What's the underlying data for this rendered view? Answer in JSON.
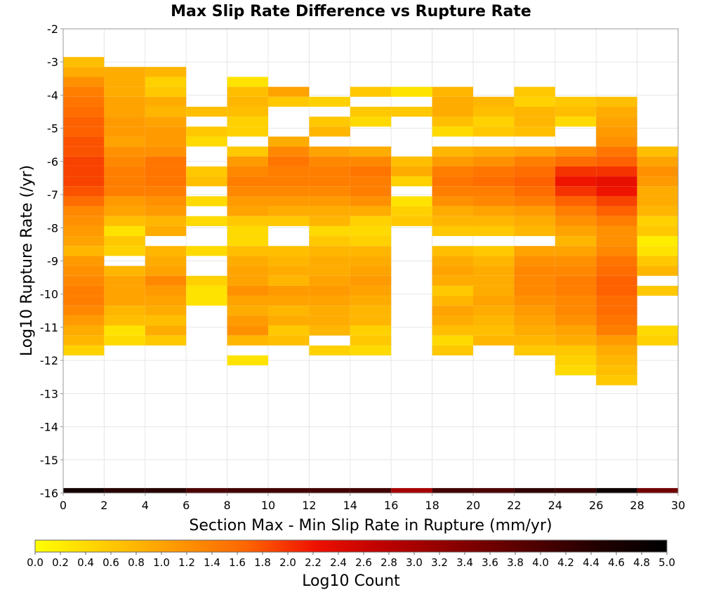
{
  "chart_data": {
    "type": "heatmap",
    "title": "Max Slip Rate Difference vs Rupture Rate",
    "xlabel": "Section Max - Min Slip Rate in Rupture (mm/yr)",
    "ylabel": "Log10 Rupture Rate (/yr)",
    "xlim": [
      0,
      30
    ],
    "ylim": [
      -16,
      -2
    ],
    "x_ticks": [
      "0",
      "2",
      "4",
      "6",
      "8",
      "10",
      "12",
      "14",
      "16",
      "18",
      "20",
      "22",
      "24",
      "26",
      "28",
      "30"
    ],
    "y_ticks": [
      "-2",
      "-3",
      "-4",
      "-5",
      "-6",
      "-7",
      "-8",
      "-9",
      "-10",
      "-11",
      "-12",
      "-13",
      "-14",
      "-15",
      "-16"
    ],
    "grid": true,
    "x_bin_width": 2,
    "y_bin_height": 0.3,
    "colorbar": {
      "label": "Log10 Count",
      "range": [
        0,
        5
      ],
      "position": "bottom",
      "ticks": [
        "0.0",
        "0.2",
        "0.4",
        "0.6",
        "0.8",
        "1.0",
        "1.2",
        "1.4",
        "1.6",
        "1.8",
        "2.0",
        "2.2",
        "2.4",
        "2.6",
        "2.8",
        "3.0",
        "3.2",
        "3.4",
        "3.6",
        "3.8",
        "4.0",
        "4.2",
        "4.4",
        "4.6",
        "4.8",
        "5.0"
      ],
      "colors": [
        "#ffff00",
        "#ffcc00",
        "#ff9900",
        "#ff6600",
        "#ee1100",
        "#bb0000",
        "#880000",
        "#550000",
        "#220000",
        "#000000"
      ]
    },
    "columns": [
      {
        "x": 0,
        "values": {
          "-3.0": 0.7,
          "-3.3": 0.9,
          "-3.6": 1.2,
          "-3.9": 1.4,
          "-4.2": 1.5,
          "-4.5": 1.6,
          "-4.8": 1.7,
          "-5.1": 1.7,
          "-5.4": 1.8,
          "-5.7": 1.8,
          "-6.0": 1.9,
          "-6.3": 1.9,
          "-6.6": 1.9,
          "-6.9": 1.8,
          "-7.2": 1.6,
          "-7.5": 1.3,
          "-7.8": 1.2,
          "-8.1": 1.1,
          "-8.4": 1.0,
          "-8.7": 0.8,
          "-9.0": 1.1,
          "-9.3": 1.2,
          "-9.6": 1.3,
          "-9.9": 1.4,
          "-10.2": 1.4,
          "-10.5": 1.3,
          "-10.8": 1.1,
          "-11.1": 0.9,
          "-11.4": 0.8,
          "-11.7": 0.5
        }
      },
      {
        "x": 2,
        "values": {
          "-3.3": 0.9,
          "-3.6": 0.9,
          "-3.9": 0.9,
          "-4.2": 1.0,
          "-4.5": 1.0,
          "-4.8": 1.1,
          "-5.1": 1.1,
          "-5.4": 1.0,
          "-5.7": 1.2,
          "-6.0": 1.3,
          "-6.3": 1.4,
          "-6.6": 1.4,
          "-6.9": 1.4,
          "-7.2": 1.1,
          "-7.5": 1.0,
          "-7.8": 0.7,
          "-8.1": 0.3,
          "-8.4": 0.6,
          "-8.7": 0.5,
          "-9.3": 0.8,
          "-9.6": 1.0,
          "-9.9": 1.0,
          "-10.2": 1.0,
          "-10.5": 0.8,
          "-10.8": 0.7,
          "-11.1": 0.3,
          "-11.4": 0.4
        }
      },
      {
        "x": 4,
        "values": {
          "-3.3": 0.8,
          "-3.6": 0.5,
          "-3.9": 0.6,
          "-4.2": 0.9,
          "-4.5": 0.8,
          "-4.8": 1.0,
          "-5.1": 1.1,
          "-5.4": 1.1,
          "-5.7": 1.2,
          "-6.0": 1.5,
          "-6.3": 1.5,
          "-6.6": 1.5,
          "-6.9": 1.4,
          "-7.2": 1.2,
          "-7.5": 1.1,
          "-7.8": 0.8,
          "-8.1": 0.9,
          "-8.7": 0.8,
          "-9.0": 0.9,
          "-9.3": 1.0,
          "-9.6": 1.3,
          "-9.9": 1.1,
          "-10.2": 1.0,
          "-10.5": 0.9,
          "-10.8": 0.7,
          "-11.1": 0.9,
          "-11.4": 0.6
        }
      },
      {
        "x": 6,
        "values": {
          "-4.5": 0.7,
          "-5.1": 0.6,
          "-5.4": 0.4,
          "-6.3": 0.6,
          "-6.6": 0.7,
          "-7.2": 0.4,
          "-7.8": 0.4,
          "-8.7": 0.4,
          "-9.6": 0.5,
          "-9.9": 0.3,
          "-10.2": 0.3
        }
      },
      {
        "x": 8,
        "values": {
          "-3.6": 0.3,
          "-3.9": 0.7,
          "-4.2": 0.8,
          "-4.5": 0.7,
          "-4.8": 0.5,
          "-5.1": 0.5,
          "-5.7": 0.6,
          "-6.0": 1.1,
          "-6.3": 1.3,
          "-6.6": 1.4,
          "-6.9": 1.3,
          "-7.2": 1.1,
          "-7.5": 1.0,
          "-7.8": 0.6,
          "-8.1": 0.4,
          "-8.4": 0.4,
          "-8.7": 0.7,
          "-9.0": 0.9,
          "-9.3": 1.0,
          "-9.6": 1.0,
          "-9.9": 1.2,
          "-10.2": 1.0,
          "-10.5": 0.9,
          "-10.8": 1.1,
          "-11.1": 1.2,
          "-11.4": 0.8,
          "-12.0": 0.3
        }
      },
      {
        "x": 10,
        "values": {
          "-3.9": 1.0,
          "-4.2": 0.6,
          "-5.4": 0.9,
          "-5.7": 1.3,
          "-6.0": 1.5,
          "-6.3": 1.4,
          "-6.6": 1.4,
          "-6.9": 1.3,
          "-7.2": 1.1,
          "-7.5": 0.9,
          "-7.8": 0.6,
          "-8.7": 0.7,
          "-9.0": 0.8,
          "-9.3": 0.9,
          "-9.6": 0.8,
          "-9.9": 1.1,
          "-10.2": 1.0,
          "-10.5": 0.8,
          "-10.8": 0.9,
          "-11.1": 0.6,
          "-11.4": 0.7
        }
      },
      {
        "x": 12,
        "values": {
          "-4.2": 0.5,
          "-4.8": 0.6,
          "-5.1": 0.8,
          "-5.7": 1.0,
          "-6.0": 1.3,
          "-6.3": 1.4,
          "-6.6": 1.4,
          "-6.9": 1.3,
          "-7.2": 1.1,
          "-7.5": 0.9,
          "-7.8": 0.8,
          "-8.1": 0.4,
          "-8.4": 0.6,
          "-8.7": 0.8,
          "-9.0": 0.9,
          "-9.3": 0.9,
          "-9.6": 1.0,
          "-9.9": 1.1,
          "-10.2": 1.0,
          "-10.5": 0.9,
          "-10.8": 0.9,
          "-11.1": 0.8,
          "-11.7": 0.5
        }
      },
      {
        "x": 14,
        "values": {
          "-3.9": 0.6,
          "-4.5": 0.6,
          "-4.8": 0.4,
          "-5.7": 0.9,
          "-6.0": 1.3,
          "-6.3": 1.5,
          "-6.6": 1.4,
          "-6.9": 1.4,
          "-7.2": 1.2,
          "-7.5": 0.9,
          "-7.8": 0.5,
          "-8.1": 0.4,
          "-8.4": 0.5,
          "-8.7": 0.8,
          "-9.0": 0.9,
          "-9.3": 1.0,
          "-9.6": 1.1,
          "-9.9": 1.0,
          "-10.2": 0.9,
          "-10.5": 0.8,
          "-10.8": 0.8,
          "-11.1": 0.5,
          "-11.4": 0.6,
          "-11.7": 0.4
        }
      },
      {
        "x": 16,
        "values": {
          "-3.9": 0.3,
          "-4.5": 0.6,
          "-6.0": 0.7,
          "-6.3": 0.9,
          "-6.6": 0.5,
          "-7.2": 0.3,
          "-7.5": 0.5,
          "-7.8": 0.6
        }
      },
      {
        "x": 18,
        "values": {
          "-3.9": 0.8,
          "-4.2": 0.9,
          "-4.5": 0.9,
          "-4.8": 0.7,
          "-5.1": 0.4,
          "-5.7": 0.8,
          "-6.0": 1.1,
          "-6.3": 1.4,
          "-6.6": 1.5,
          "-6.9": 1.4,
          "-7.2": 1.2,
          "-7.5": 0.9,
          "-7.8": 0.8,
          "-8.1": 0.6,
          "-8.7": 0.7,
          "-9.0": 0.9,
          "-9.3": 1.0,
          "-9.6": 0.9,
          "-9.9": 0.6,
          "-10.2": 0.8,
          "-10.5": 1.0,
          "-10.8": 0.9,
          "-11.1": 0.7,
          "-11.4": 0.4,
          "-11.7": 0.6
        }
      },
      {
        "x": 20,
        "values": {
          "-4.2": 0.8,
          "-4.5": 0.7,
          "-4.8": 0.5,
          "-5.1": 0.6,
          "-5.7": 0.9,
          "-6.0": 1.2,
          "-6.3": 1.5,
          "-6.6": 1.6,
          "-6.9": 1.4,
          "-7.2": 1.3,
          "-7.5": 1.0,
          "-7.8": 0.8,
          "-8.1": 0.6,
          "-8.7": 0.6,
          "-9.0": 0.8,
          "-9.3": 0.9,
          "-9.6": 0.9,
          "-9.9": 0.9,
          "-10.2": 1.0,
          "-10.5": 0.9,
          "-10.8": 0.8,
          "-11.1": 0.7,
          "-11.4": 0.8
        }
      },
      {
        "x": 22,
        "values": {
          "-3.9": 0.6,
          "-4.2": 0.5,
          "-4.5": 0.8,
          "-4.8": 0.8,
          "-5.1": 0.7,
          "-5.7": 1.0,
          "-6.0": 1.4,
          "-6.3": 1.6,
          "-6.6": 1.7,
          "-6.9": 1.6,
          "-7.2": 1.4,
          "-7.5": 1.1,
          "-7.8": 0.9,
          "-8.1": 0.8,
          "-8.7": 1.0,
          "-9.0": 1.2,
          "-9.3": 1.3,
          "-9.6": 1.3,
          "-9.9": 1.3,
          "-10.2": 1.2,
          "-10.5": 1.1,
          "-10.8": 1.0,
          "-11.1": 0.9,
          "-11.4": 0.8,
          "-11.7": 0.6
        }
      },
      {
        "x": 24,
        "values": {
          "-4.2": 0.6,
          "-4.5": 0.7,
          "-4.8": 0.4,
          "-5.7": 1.2,
          "-6.0": 1.6,
          "-6.3": 2.0,
          "-6.6": 2.2,
          "-6.9": 2.0,
          "-7.2": 1.7,
          "-7.5": 1.4,
          "-7.8": 1.2,
          "-8.1": 1.0,
          "-8.4": 0.8,
          "-8.7": 1.0,
          "-9.0": 1.2,
          "-9.3": 1.3,
          "-9.6": 1.4,
          "-9.9": 1.4,
          "-10.2": 1.3,
          "-10.5": 1.3,
          "-10.8": 1.2,
          "-11.1": 1.0,
          "-11.4": 0.9,
          "-11.7": 0.6,
          "-12.0": 0.5,
          "-12.3": 0.4
        }
      },
      {
        "x": 26,
        "values": {
          "-4.2": 0.7,
          "-4.5": 0.9,
          "-4.8": 1.0,
          "-5.1": 1.1,
          "-5.4": 1.2,
          "-5.7": 1.5,
          "-6.0": 1.7,
          "-6.3": 2.0,
          "-6.6": 2.3,
          "-6.9": 2.2,
          "-7.2": 1.9,
          "-7.5": 1.7,
          "-7.8": 1.4,
          "-8.1": 1.2,
          "-8.4": 1.2,
          "-8.7": 1.3,
          "-9.0": 1.5,
          "-9.3": 1.6,
          "-9.6": 1.7,
          "-9.9": 1.7,
          "-10.2": 1.6,
          "-10.5": 1.6,
          "-10.8": 1.5,
          "-11.1": 1.4,
          "-11.4": 1.1,
          "-11.7": 0.9,
          "-12.0": 0.8,
          "-12.3": 0.7,
          "-12.6": 0.6
        }
      },
      {
        "x": 28,
        "values": {
          "-5.7": 0.7,
          "-6.0": 1.0,
          "-6.3": 1.2,
          "-6.6": 1.1,
          "-6.9": 0.9,
          "-7.2": 0.9,
          "-7.5": 0.8,
          "-7.8": 0.5,
          "-8.1": 0.6,
          "-8.4": 0.2,
          "-8.7": 0.3,
          "-9.0": 0.6,
          "-9.3": 0.8,
          "-9.9": 0.6,
          "-11.1": 0.4,
          "-11.4": 0.5
        }
      }
    ],
    "floor_row": {
      "y": -16,
      "values": [
        4.7,
        4.4,
        4.4,
        4.0,
        4.1,
        4.1,
        4.1,
        4.1,
        3.0,
        4.1,
        4.0,
        4.3,
        4.2,
        4.8,
        3.6
      ]
    }
  }
}
